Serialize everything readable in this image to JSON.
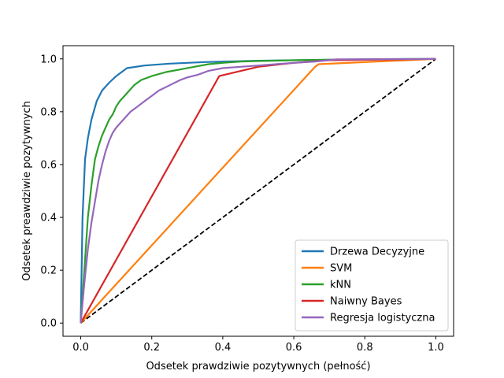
{
  "chart_data": {
    "type": "line",
    "title": "",
    "xlabel": "Odsetek prawdziwie pozytywnych (pełność)",
    "ylabel": "Odsetek preawdziwie pozytywnych",
    "xlim": [
      -0.05,
      1.05
    ],
    "ylim": [
      -0.05,
      1.05
    ],
    "xticks": [
      "0.0",
      "0.2",
      "0.4",
      "0.6",
      "0.8",
      "1.0"
    ],
    "yticks": [
      "0.0",
      "0.2",
      "0.4",
      "0.6",
      "0.8",
      "1.0"
    ],
    "grid": false,
    "legend_position": "bottom-right",
    "diagonal": {
      "x": [
        0,
        1
      ],
      "y": [
        0,
        1
      ],
      "color": "#000000",
      "style": "dashed"
    },
    "series": [
      {
        "name": "Drzewa Decyzyjne",
        "color": "#1f77b4",
        "x": [
          0,
          0.005,
          0.012,
          0.02,
          0.03,
          0.045,
          0.06,
          0.08,
          0.1,
          0.13,
          0.18,
          0.25,
          0.35,
          0.5,
          0.7,
          1.0
        ],
        "y": [
          0,
          0.4,
          0.62,
          0.7,
          0.77,
          0.84,
          0.88,
          0.91,
          0.935,
          0.965,
          0.975,
          0.982,
          0.988,
          0.993,
          0.997,
          1.0
        ]
      },
      {
        "name": "SVM",
        "color": "#ff7f0e",
        "x": [
          0,
          0.66,
          0.67,
          1.0
        ],
        "y": [
          0,
          0.97,
          0.98,
          1.0
        ]
      },
      {
        "name": "kNN",
        "color": "#2ca02c",
        "x": [
          0,
          0.01,
          0.02,
          0.03,
          0.04,
          0.05,
          0.06,
          0.07,
          0.08,
          0.09,
          0.1,
          0.11,
          0.12,
          0.13,
          0.15,
          0.17,
          0.2,
          0.24,
          0.28,
          0.32,
          0.36,
          0.4,
          0.45,
          0.5,
          0.6,
          0.7,
          0.85,
          1.0
        ],
        "y": [
          0,
          0.2,
          0.4,
          0.52,
          0.62,
          0.67,
          0.71,
          0.74,
          0.77,
          0.79,
          0.82,
          0.84,
          0.855,
          0.87,
          0.9,
          0.92,
          0.935,
          0.95,
          0.96,
          0.97,
          0.98,
          0.985,
          0.99,
          0.992,
          0.995,
          0.997,
          0.999,
          1.0
        ]
      },
      {
        "name": "Naiwny Bayes",
        "color": "#d62728",
        "x": [
          0,
          0.39,
          0.5,
          0.6,
          0.7,
          1.0
        ],
        "y": [
          0,
          0.935,
          0.97,
          0.985,
          0.995,
          1.0
        ]
      },
      {
        "name": "Regresja logistyczna",
        "color": "#9467bd",
        "x": [
          0,
          0.01,
          0.02,
          0.03,
          0.04,
          0.05,
          0.06,
          0.07,
          0.08,
          0.09,
          0.1,
          0.12,
          0.14,
          0.16,
          0.18,
          0.2,
          0.22,
          0.25,
          0.28,
          0.3,
          0.33,
          0.36,
          0.4,
          0.45,
          0.5,
          0.55,
          0.6,
          0.66,
          0.72,
          0.85,
          1.0
        ],
        "y": [
          0,
          0.15,
          0.28,
          0.38,
          0.46,
          0.54,
          0.6,
          0.65,
          0.69,
          0.72,
          0.74,
          0.77,
          0.8,
          0.82,
          0.84,
          0.86,
          0.88,
          0.9,
          0.92,
          0.93,
          0.94,
          0.955,
          0.965,
          0.97,
          0.975,
          0.98,
          0.985,
          0.99,
          0.998,
          0.999,
          1.0
        ]
      }
    ]
  }
}
